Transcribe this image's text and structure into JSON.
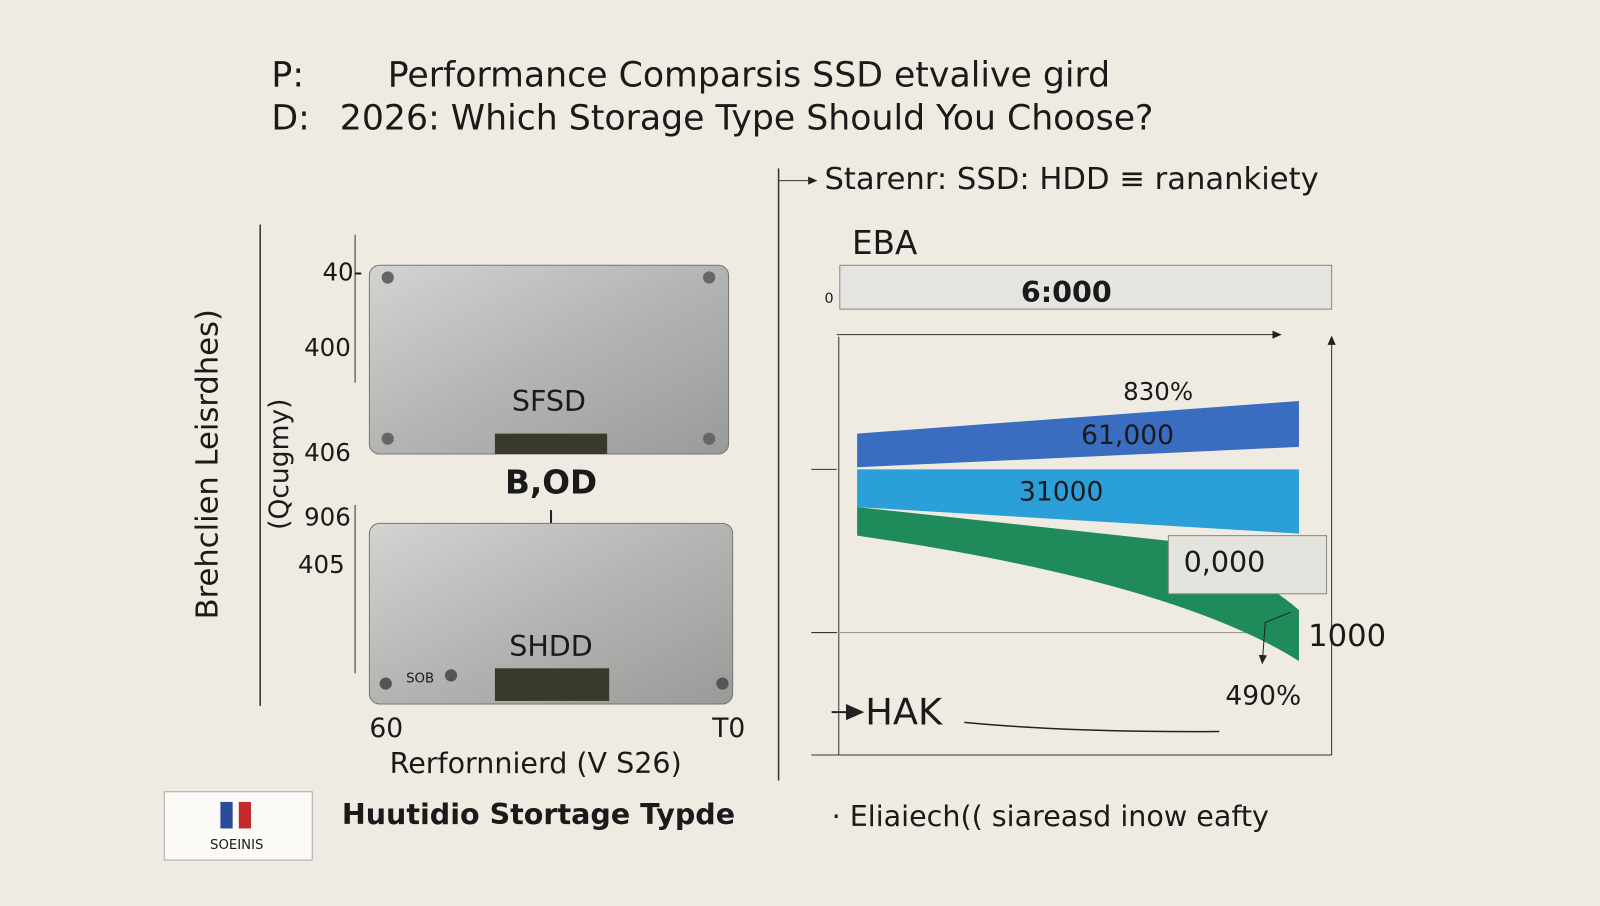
{
  "header": {
    "prefix_1": "P:",
    "title_1": "Performance Comparsis SSD etvalive gird",
    "prefix_2": "D:",
    "title_2": "2026: Which Storage Type Should You Choose?"
  },
  "left_panel": {
    "axis_label": "Brehclien Leisrdhes)",
    "axis_sublabel": "(Qcugmy)",
    "ticks": [
      "40-",
      "400",
      "406",
      "906",
      "405"
    ],
    "drive_1": "SFSD",
    "middle_label": "B,OD",
    "drive_2": "SHDD",
    "drive_2_small": "SOB",
    "x_start": "60",
    "x_end": "T0",
    "x_label": "Rerfornnierd (V S26)"
  },
  "badge": {
    "text": "SOEINIS"
  },
  "caption": "Huutidio Stortage Typde",
  "right_panel": {
    "legend": "Starenr: SSD: HDD ≡ ranankiety",
    "heading": "EBA",
    "top_bar": "6:000",
    "zero": "0",
    "label_1": "830%",
    "bar_1": "61,000",
    "bar_2": "31000",
    "box": "0,000",
    "side_value": "1000",
    "label_2": "490%",
    "bottom_label": "HAK",
    "footnote": "· Eliaiech(( siareasd inow eafty"
  }
}
